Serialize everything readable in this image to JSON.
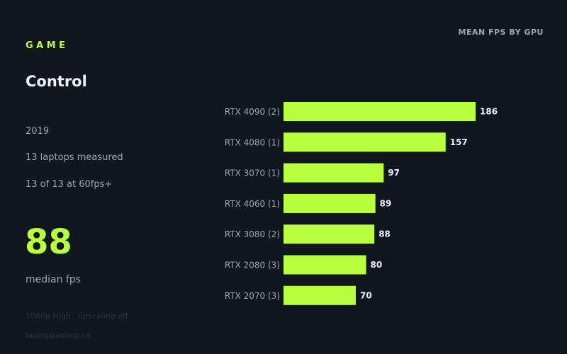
{
  "header": {
    "kicker": "GAME",
    "title": "Control"
  },
  "stats": {
    "year": "2019",
    "laptops": "13 laptops measured",
    "sixty": "13 of 13 at 60fps+"
  },
  "summary": {
    "value": "88",
    "label": "median fps"
  },
  "footer": {
    "settings": "1080p High · upscaling off",
    "source": "laptopgaming.uk"
  },
  "colors": {
    "background": "#12161f",
    "accent": "#b8ff3e"
  },
  "chart_data": {
    "type": "bar",
    "orientation": "horizontal",
    "title": "MEAN FPS BY GPU",
    "categories": [
      "RTX 4090  (2)",
      "RTX 4080  (1)",
      "RTX 3070  (1)",
      "RTX 4060  (1)",
      "RTX 3080  (2)",
      "RTX 2080  (3)",
      "RTX 2070  (3)"
    ],
    "values": [
      186,
      157,
      97,
      89,
      88,
      80,
      70
    ],
    "xlim": [
      0,
      186
    ],
    "grid": false,
    "legend": "none"
  }
}
